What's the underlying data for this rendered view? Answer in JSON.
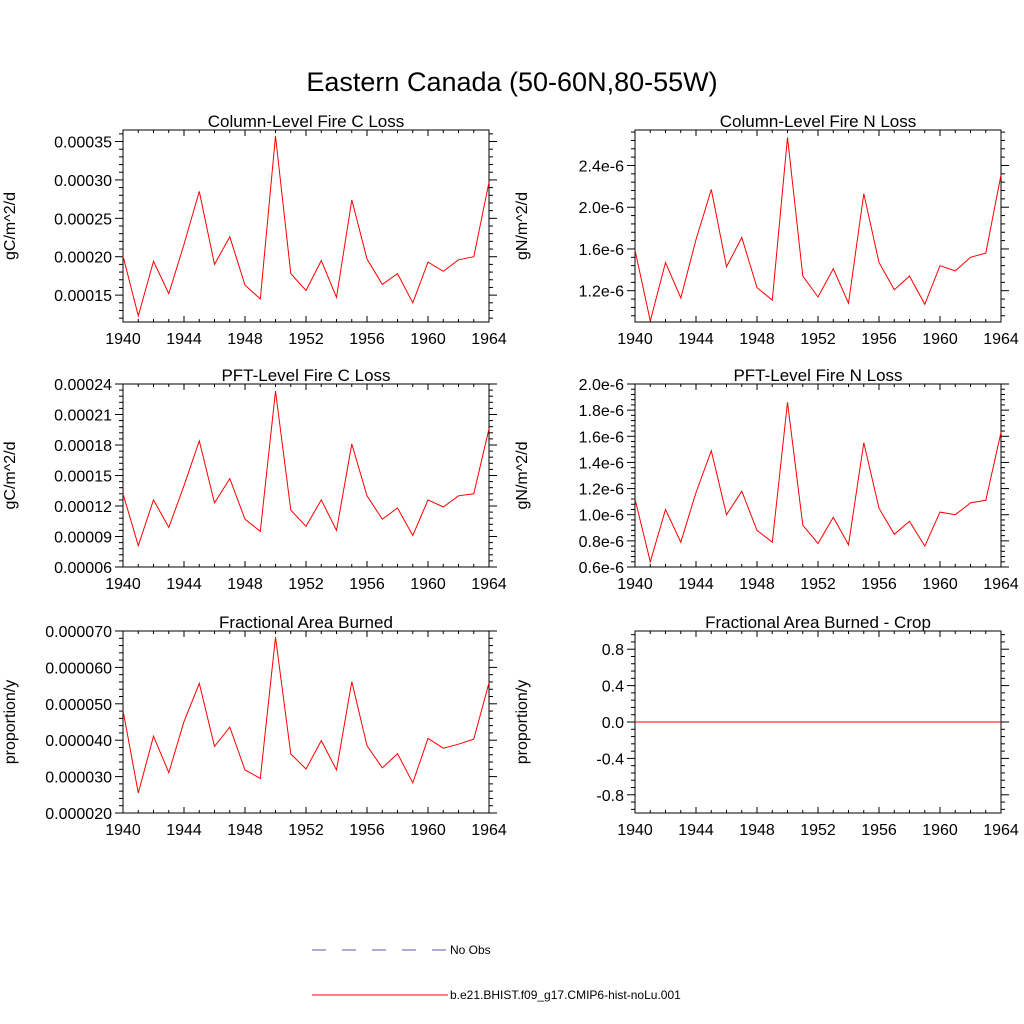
{
  "chart_data": {
    "title": "Eastern Canada (50-60N,80-55W)",
    "panels": [
      {
        "type": "line",
        "title": "Column-Level Fire C Loss",
        "ylabel": "gC/m^2/d",
        "xlim": [
          1940,
          1964
        ],
        "ylim": [
          0.000115,
          0.000365
        ],
        "x_ticks": [
          1940,
          1944,
          1948,
          1952,
          1956,
          1960,
          1964
        ],
        "y_ticks": [
          0.00015,
          0.0002,
          0.00025,
          0.0003,
          0.00035
        ],
        "y_tick_labels": [
          "0.00015",
          "0.00020",
          "0.00025",
          "0.00030",
          "0.00035"
        ],
        "x": [
          1940,
          1941,
          1942,
          1943,
          1944,
          1945,
          1946,
          1947,
          1948,
          1949,
          1950,
          1951,
          1952,
          1953,
          1954,
          1955,
          1956,
          1957,
          1958,
          1959,
          1960,
          1961,
          1962,
          1963,
          1964
        ],
        "y": [
          0.000201,
          0.000123,
          0.000194,
          0.000152,
          0.000216,
          0.000285,
          0.00019,
          0.000226,
          0.000163,
          0.000145,
          0.000357,
          0.000178,
          0.000156,
          0.000195,
          0.000147,
          0.000274,
          0.000197,
          0.000164,
          0.000178,
          0.00014,
          0.000193,
          0.000181,
          0.000196,
          0.0002,
          0.000297
        ]
      },
      {
        "type": "line",
        "title": "Column-Level Fire N Loss",
        "ylabel": "gN/m^2/d",
        "xlim": [
          1940,
          1964
        ],
        "ylim": [
          9e-07,
          2.74e-06
        ],
        "x_ticks": [
          1940,
          1944,
          1948,
          1952,
          1956,
          1960,
          1964
        ],
        "y_ticks": [
          1.2e-06,
          1.6e-06,
          2e-06,
          2.4e-06
        ],
        "y_tick_labels": [
          "1.2e-6",
          "1.6e-6",
          "2.0e-6",
          "2.4e-6"
        ],
        "x": [
          1940,
          1941,
          1942,
          1943,
          1944,
          1945,
          1946,
          1947,
          1948,
          1949,
          1950,
          1951,
          1952,
          1953,
          1954,
          1955,
          1956,
          1957,
          1958,
          1959,
          1960,
          1961,
          1962,
          1963,
          1964
        ],
        "y": [
          1.59e-06,
          9.1e-07,
          1.47e-06,
          1.13e-06,
          1.69e-06,
          2.17e-06,
          1.43e-06,
          1.71e-06,
          1.23e-06,
          1.11e-06,
          2.67e-06,
          1.34e-06,
          1.14e-06,
          1.41e-06,
          1.08e-06,
          2.13e-06,
          1.47e-06,
          1.21e-06,
          1.34e-06,
          1.07e-06,
          1.44e-06,
          1.39e-06,
          1.52e-06,
          1.56e-06,
          2.31e-06
        ]
      },
      {
        "type": "line",
        "title": "PFT-Level Fire C Loss",
        "ylabel": "gC/m^2/d",
        "xlim": [
          1940,
          1964
        ],
        "ylim": [
          6e-05,
          0.00024
        ],
        "x_ticks": [
          1940,
          1944,
          1948,
          1952,
          1956,
          1960,
          1964
        ],
        "y_ticks": [
          6e-05,
          9e-05,
          0.00012,
          0.00015,
          0.00018,
          0.00021,
          0.00024
        ],
        "y_tick_labels": [
          "0.00006",
          "0.00009",
          "0.00012",
          "0.00015",
          "0.00018",
          "0.00021",
          "0.00024"
        ],
        "x": [
          1940,
          1941,
          1942,
          1943,
          1944,
          1945,
          1946,
          1947,
          1948,
          1949,
          1950,
          1951,
          1952,
          1953,
          1954,
          1955,
          1956,
          1957,
          1958,
          1959,
          1960,
          1961,
          1962,
          1963,
          1964
        ],
        "y": [
          0.000132,
          8.1e-05,
          0.000126,
          9.9e-05,
          0.00014,
          0.000184,
          0.000123,
          0.000147,
          0.000107,
          9.5e-05,
          0.000233,
          0.000116,
          0.0001,
          0.000126,
          9.6e-05,
          0.000181,
          0.00013,
          0.000107,
          0.000118,
          9.1e-05,
          0.000126,
          0.000119,
          0.00013,
          0.000132,
          0.000196
        ]
      },
      {
        "type": "line",
        "title": "PFT-Level Fire N Loss",
        "ylabel": "gN/m^2/d",
        "xlim": [
          1940,
          1964
        ],
        "ylim": [
          6e-07,
          2e-06
        ],
        "x_ticks": [
          1940,
          1944,
          1948,
          1952,
          1956,
          1960,
          1964
        ],
        "y_ticks": [
          6e-07,
          8e-07,
          1e-06,
          1.2e-06,
          1.4e-06,
          1.6e-06,
          1.8e-06,
          2e-06
        ],
        "y_tick_labels": [
          "0.6e-6",
          "0.8e-6",
          "1.0e-6",
          "1.2e-6",
          "1.4e-6",
          "1.6e-6",
          "1.8e-6",
          "2.0e-6"
        ],
        "x": [
          1940,
          1941,
          1942,
          1943,
          1944,
          1945,
          1946,
          1947,
          1948,
          1949,
          1950,
          1951,
          1952,
          1953,
          1954,
          1955,
          1956,
          1957,
          1958,
          1959,
          1960,
          1961,
          1962,
          1963,
          1964
        ],
        "y": [
          1.12e-06,
          6.4e-07,
          1.04e-06,
          7.9e-07,
          1.17e-06,
          1.49e-06,
          1e-06,
          1.18e-06,
          8.8e-07,
          7.9e-07,
          1.86e-06,
          9.2e-07,
          7.8e-07,
          9.8e-07,
          7.7e-07,
          1.55e-06,
          1.05e-06,
          8.5e-07,
          9.5e-07,
          7.6e-07,
          1.02e-06,
          1e-06,
          1.09e-06,
          1.11e-06,
          1.63e-06
        ]
      },
      {
        "type": "line",
        "title": "Fractional Area Burned",
        "ylabel": "proportion/y",
        "xlim": [
          1940,
          1964
        ],
        "ylim": [
          2e-05,
          7e-05
        ],
        "x_ticks": [
          1940,
          1944,
          1948,
          1952,
          1956,
          1960,
          1964
        ],
        "y_ticks": [
          2e-05,
          3e-05,
          4e-05,
          5e-05,
          6e-05,
          7e-05
        ],
        "y_tick_labels": [
          "0.000020",
          "0.000030",
          "0.000040",
          "0.000050",
          "0.000060",
          "0.000070"
        ],
        "x": [
          1940,
          1941,
          1942,
          1943,
          1944,
          1945,
          1946,
          1947,
          1948,
          1949,
          1950,
          1951,
          1952,
          1953,
          1954,
          1955,
          1956,
          1957,
          1958,
          1959,
          1960,
          1961,
          1962,
          1963,
          1964
        ],
        "y": [
          4.82e-05,
          2.55e-05,
          4.11e-05,
          3.11e-05,
          4.51e-05,
          5.56e-05,
          3.83e-05,
          4.36e-05,
          3.18e-05,
          2.95e-05,
          6.83e-05,
          3.62e-05,
          3.21e-05,
          3.99e-05,
          3.18e-05,
          5.61e-05,
          3.85e-05,
          3.24e-05,
          3.63e-05,
          2.83e-05,
          4.05e-05,
          3.78e-05,
          3.89e-05,
          4.03e-05,
          5.58e-05
        ]
      },
      {
        "type": "line",
        "title": "Fractional Area Burned - Crop",
        "ylabel": "proportion/y",
        "xlim": [
          1940,
          1964
        ],
        "ylim": [
          -1.0,
          1.0
        ],
        "x_ticks": [
          1940,
          1944,
          1948,
          1952,
          1956,
          1960,
          1964
        ],
        "y_ticks": [
          -0.8,
          -0.4,
          0.0,
          0.4,
          0.8
        ],
        "y_tick_labels": [
          "-0.8",
          "-0.4",
          "0.0",
          "0.4",
          "0.8"
        ],
        "x": [
          1940,
          1964
        ],
        "y": [
          0,
          0
        ]
      }
    ],
    "legend": [
      {
        "name": "No Obs",
        "color": "#5a5aa8",
        "style": "dashed"
      },
      {
        "name": "b.e21.BHIST.f09_g17.CMIP6-hist-noLu.001",
        "color": "#ff0000",
        "style": "solid"
      }
    ]
  }
}
